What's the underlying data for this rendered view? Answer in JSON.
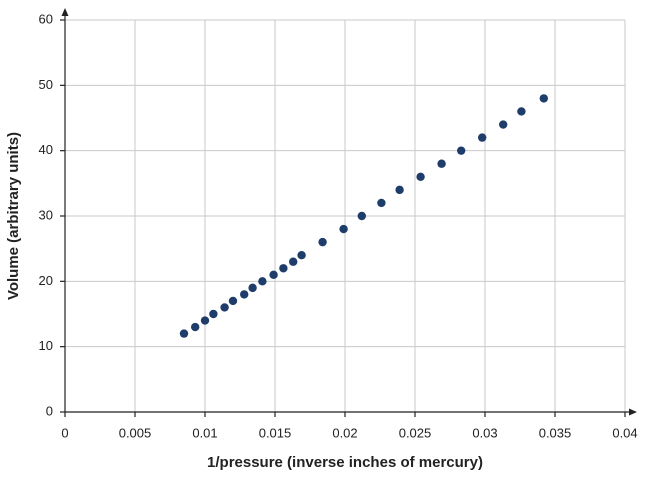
{
  "chart_data": {
    "type": "scatter",
    "x_label": "1/pressure (inverse inches of mercury)",
    "y_label": "Volume (arbitrary units)",
    "x": [
      0.0085,
      0.0093,
      0.01,
      0.0106,
      0.0114,
      0.012,
      0.0128,
      0.0134,
      0.0141,
      0.0149,
      0.0156,
      0.0163,
      0.0169,
      0.0184,
      0.0199,
      0.0212,
      0.0226,
      0.0239,
      0.0254,
      0.0269,
      0.0283,
      0.0298,
      0.0313,
      0.0326,
      0.0342
    ],
    "values": [
      12,
      13,
      14,
      15,
      16,
      17,
      18,
      19,
      20,
      21,
      22,
      23,
      24,
      26,
      28,
      30,
      32,
      34,
      36,
      38,
      40,
      42,
      44,
      46,
      48
    ],
    "color": "#1f3d6b",
    "xlim": [
      0,
      0.04
    ],
    "xticks": [
      0,
      0.005,
      0.01,
      0.015,
      0.02,
      0.025,
      0.03,
      0.035,
      0.04
    ],
    "ylim": [
      0,
      60
    ],
    "yticks": [
      0,
      10,
      20,
      30,
      40,
      50,
      60
    ],
    "grid": true
  }
}
